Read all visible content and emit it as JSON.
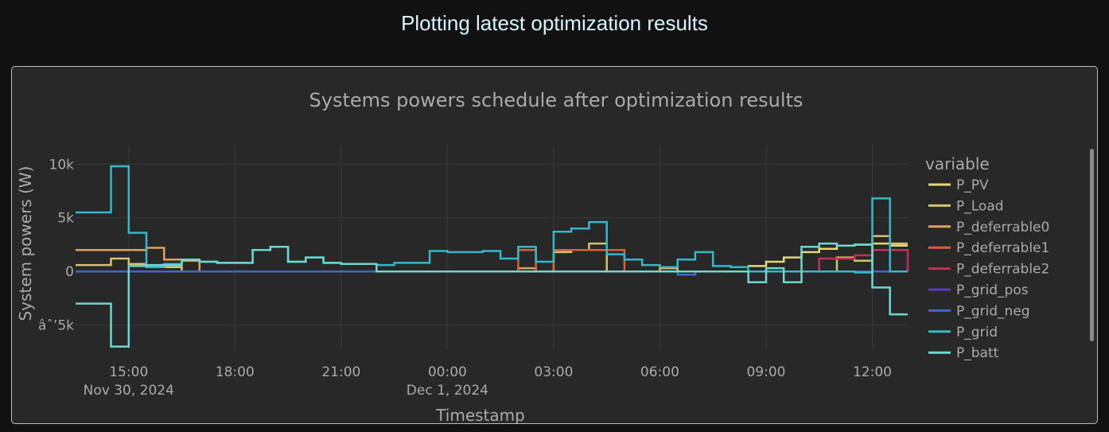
{
  "header": {
    "title": "Plotting latest optimization results"
  },
  "chart_data": {
    "type": "line",
    "line_shape": "step",
    "title": "Systems powers schedule after optimization results",
    "xlabel": "Timestamp",
    "ylabel": "System powers (W)",
    "ylim": [
      -7400,
      11800
    ],
    "xlim": [
      "2024-11-30 13:30",
      "2024-12-01 13:00"
    ],
    "grid": true,
    "legend_title": "variable",
    "legend_position": "right",
    "y_ticks": [
      {
        "value": 10000,
        "label": "10k"
      },
      {
        "value": 5000,
        "label": "5k"
      },
      {
        "value": 0,
        "label": "0"
      },
      {
        "value": -5000,
        "label": "âˆ’5k"
      }
    ],
    "x_ticks": [
      {
        "time": "2024-11-30 15:00",
        "label": "15:00",
        "sublabel": "Nov 30, 2024"
      },
      {
        "time": "2024-11-30 18:00",
        "label": "18:00",
        "sublabel": ""
      },
      {
        "time": "2024-11-30 21:00",
        "label": "21:00",
        "sublabel": ""
      },
      {
        "time": "2024-12-01 00:00",
        "label": "00:00",
        "sublabel": "Dec 1, 2024"
      },
      {
        "time": "2024-12-01 03:00",
        "label": "03:00",
        "sublabel": ""
      },
      {
        "time": "2024-12-01 06:00",
        "label": "06:00",
        "sublabel": ""
      },
      {
        "time": "2024-12-01 09:00",
        "label": "09:00",
        "sublabel": ""
      },
      {
        "time": "2024-12-01 12:00",
        "label": "12:00",
        "sublabel": ""
      }
    ],
    "series": [
      {
        "name": "P_PV",
        "color": "#e3d87a",
        "points": [
          [
            "2024-11-30 13:30",
            0
          ],
          [
            "2024-12-01 08:00",
            0
          ],
          [
            "2024-12-01 08:30",
            500
          ],
          [
            "2024-12-01 09:00",
            900
          ],
          [
            "2024-12-01 09:30",
            1300
          ],
          [
            "2024-12-01 10:00",
            1800
          ],
          [
            "2024-12-01 10:30",
            2100
          ],
          [
            "2024-12-01 11:00",
            2400
          ],
          [
            "2024-12-01 11:30",
            2500
          ],
          [
            "2024-12-01 12:00",
            2600
          ],
          [
            "2024-12-01 12:30",
            2400
          ],
          [
            "2024-12-01 13:00",
            2400
          ]
        ]
      },
      {
        "name": "P_Load",
        "color": "#d9c070",
        "points": [
          [
            "2024-11-30 13:30",
            600
          ],
          [
            "2024-11-30 14:00",
            600
          ],
          [
            "2024-11-30 14:30",
            1200
          ],
          [
            "2024-11-30 15:00",
            700
          ],
          [
            "2024-11-30 15:30",
            500
          ],
          [
            "2024-11-30 16:00",
            400
          ],
          [
            "2024-11-30 16:30",
            0
          ],
          [
            "2024-12-01 02:30",
            0
          ],
          [
            "2024-12-01 03:00",
            1800
          ],
          [
            "2024-12-01 03:30",
            2000
          ],
          [
            "2024-12-01 04:00",
            2600
          ],
          [
            "2024-12-01 04:30",
            0
          ],
          [
            "2024-12-01 05:30",
            0
          ],
          [
            "2024-12-01 06:00",
            300
          ],
          [
            "2024-12-01 06:30",
            0
          ],
          [
            "2024-12-01 10:30",
            0
          ],
          [
            "2024-12-01 11:00",
            1300
          ],
          [
            "2024-12-01 11:30",
            1000
          ],
          [
            "2024-12-01 12:00",
            3300
          ],
          [
            "2024-12-01 12:30",
            2600
          ],
          [
            "2024-12-01 13:00",
            2600
          ]
        ]
      },
      {
        "name": "P_deferrable0",
        "color": "#e0a060",
        "points": [
          [
            "2024-11-30 13:30",
            2000
          ],
          [
            "2024-11-30 15:00",
            2000
          ],
          [
            "2024-11-30 15:30",
            2200
          ],
          [
            "2024-11-30 16:00",
            1100
          ],
          [
            "2024-11-30 16:30",
            1000
          ],
          [
            "2024-11-30 17:00",
            0
          ],
          [
            "2024-12-01 01:30",
            0
          ],
          [
            "2024-12-01 02:00",
            300
          ],
          [
            "2024-12-01 02:30",
            0
          ],
          [
            "2024-12-01 03:00",
            0
          ],
          [
            "2024-12-01 13:00",
            0
          ]
        ]
      },
      {
        "name": "P_deferrable1",
        "color": "#d4603a",
        "points": [
          [
            "2024-11-30 13:30",
            0
          ],
          [
            "2024-12-01 01:30",
            0
          ],
          [
            "2024-12-01 02:00",
            2000
          ],
          [
            "2024-12-01 02:30",
            0
          ],
          [
            "2024-12-01 03:00",
            2000
          ],
          [
            "2024-12-01 04:30",
            2000
          ],
          [
            "2024-12-01 05:00",
            0
          ],
          [
            "2024-12-01 13:00",
            0
          ]
        ]
      },
      {
        "name": "P_deferrable2",
        "color": "#c2305a",
        "points": [
          [
            "2024-11-30 13:30",
            0
          ],
          [
            "2024-12-01 10:00",
            0
          ],
          [
            "2024-12-01 10:30",
            1200
          ],
          [
            "2024-12-01 11:30",
            1500
          ],
          [
            "2024-12-01 12:00",
            2000
          ],
          [
            "2024-12-01 12:30",
            2000
          ],
          [
            "2024-12-01 13:00",
            0
          ]
        ]
      },
      {
        "name": "P_grid_pos",
        "color": "#5a3cc0",
        "points": [
          [
            "2024-11-30 13:30",
            0
          ],
          [
            "2024-12-01 13:00",
            0
          ]
        ]
      },
      {
        "name": "P_grid_neg",
        "color": "#3f66cc",
        "points": [
          [
            "2024-11-30 13:30",
            0
          ],
          [
            "2024-12-01 06:00",
            0
          ],
          [
            "2024-12-01 06:30",
            -300
          ],
          [
            "2024-12-01 07:00",
            0
          ],
          [
            "2024-12-01 13:00",
            0
          ]
        ]
      },
      {
        "name": "P_grid",
        "color": "#35b8cc",
        "points": [
          [
            "2024-11-30 13:30",
            5500
          ],
          [
            "2024-11-30 14:00",
            5500
          ],
          [
            "2024-11-30 14:30",
            9800
          ],
          [
            "2024-11-30 15:00",
            3600
          ],
          [
            "2024-11-30 15:30",
            400
          ],
          [
            "2024-11-30 16:00",
            700
          ],
          [
            "2024-11-30 16:30",
            1100
          ],
          [
            "2024-11-30 17:00",
            900
          ],
          [
            "2024-11-30 17:30",
            800
          ],
          [
            "2024-11-30 18:00",
            800
          ],
          [
            "2024-11-30 18:30",
            2000
          ],
          [
            "2024-11-30 19:00",
            2300
          ],
          [
            "2024-11-30 19:30",
            900
          ],
          [
            "2024-11-30 20:00",
            1300
          ],
          [
            "2024-11-30 20:30",
            800
          ],
          [
            "2024-11-30 21:00",
            700
          ],
          [
            "2024-11-30 21:30",
            700
          ],
          [
            "2024-11-30 22:00",
            600
          ],
          [
            "2024-11-30 22:30",
            800
          ],
          [
            "2024-11-30 23:00",
            800
          ],
          [
            "2024-11-30 23:30",
            1900
          ],
          [
            "2024-12-01 00:00",
            1800
          ],
          [
            "2024-12-01 00:30",
            1800
          ],
          [
            "2024-12-01 01:00",
            1900
          ],
          [
            "2024-12-01 01:30",
            1200
          ],
          [
            "2024-12-01 02:00",
            2300
          ],
          [
            "2024-12-01 02:30",
            900
          ],
          [
            "2024-12-01 03:00",
            3700
          ],
          [
            "2024-12-01 03:30",
            4000
          ],
          [
            "2024-12-01 04:00",
            4600
          ],
          [
            "2024-12-01 04:30",
            1600
          ],
          [
            "2024-12-01 05:00",
            1100
          ],
          [
            "2024-12-01 05:30",
            600
          ],
          [
            "2024-12-01 06:00",
            400
          ],
          [
            "2024-12-01 06:30",
            1100
          ],
          [
            "2024-12-01 07:00",
            1800
          ],
          [
            "2024-12-01 07:30",
            500
          ],
          [
            "2024-12-01 08:00",
            400
          ],
          [
            "2024-12-01 08:30",
            0
          ],
          [
            "2024-12-01 09:00",
            0
          ],
          [
            "2024-12-01 10:00",
            0
          ],
          [
            "2024-12-01 11:00",
            0
          ],
          [
            "2024-12-01 11:30",
            -100
          ],
          [
            "2024-12-01 12:00",
            6800
          ],
          [
            "2024-12-01 12:30",
            0
          ],
          [
            "2024-12-01 13:00",
            0
          ]
        ]
      },
      {
        "name": "P_batt",
        "color": "#6cd8d0",
        "points": [
          [
            "2024-11-30 13:30",
            -3000
          ],
          [
            "2024-11-30 14:00",
            -3000
          ],
          [
            "2024-11-30 14:30",
            -7000
          ],
          [
            "2024-11-30 15:00",
            500
          ],
          [
            "2024-11-30 15:30",
            600
          ],
          [
            "2024-11-30 16:00",
            600
          ],
          [
            "2024-11-30 16:30",
            1100
          ],
          [
            "2024-11-30 17:00",
            900
          ],
          [
            "2024-11-30 17:30",
            800
          ],
          [
            "2024-11-30 18:00",
            800
          ],
          [
            "2024-11-30 18:30",
            2000
          ],
          [
            "2024-11-30 19:00",
            2300
          ],
          [
            "2024-11-30 19:30",
            900
          ],
          [
            "2024-11-30 20:00",
            1300
          ],
          [
            "2024-11-30 20:30",
            800
          ],
          [
            "2024-11-30 21:00",
            700
          ],
          [
            "2024-11-30 21:30",
            700
          ],
          [
            "2024-11-30 22:00",
            0
          ],
          [
            "2024-12-01 04:30",
            0
          ],
          [
            "2024-12-01 08:00",
            0
          ],
          [
            "2024-12-01 08:30",
            -1000
          ],
          [
            "2024-12-01 09:00",
            300
          ],
          [
            "2024-12-01 09:30",
            -1000
          ],
          [
            "2024-12-01 10:00",
            2300
          ],
          [
            "2024-12-01 10:30",
            2600
          ],
          [
            "2024-12-01 11:00",
            2400
          ],
          [
            "2024-12-01 11:30",
            2500
          ],
          [
            "2024-12-01 12:00",
            -1500
          ],
          [
            "2024-12-01 12:30",
            -4000
          ],
          [
            "2024-12-01 13:00",
            -4000
          ]
        ]
      }
    ]
  }
}
